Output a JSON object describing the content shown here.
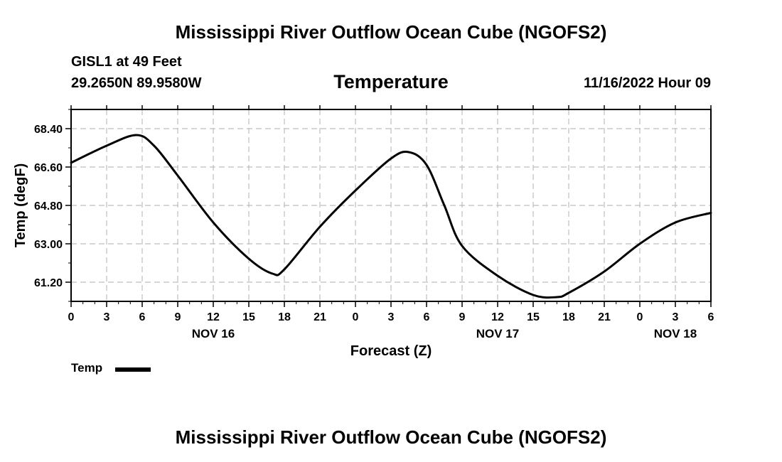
{
  "header": {
    "title": "Mississippi River Outflow Ocean Cube (NGOFS2)",
    "station": "GISL1 at 49 Feet",
    "coordinates": "29.2650N  89.9580W",
    "chart_title": "Temperature",
    "datetime": "11/16/2022 Hour 09"
  },
  "footer": {
    "title": "Mississippi River Outflow Ocean Cube (NGOFS2)"
  },
  "legend": {
    "label": "Temp",
    "color": "#000000"
  },
  "chart_data": {
    "type": "line",
    "title": "Temperature",
    "xlabel": "Forecast (Z)",
    "ylabel": "Temp (degF)",
    "xlim": [
      0,
      54
    ],
    "ylim": [
      60.3,
      69.3
    ],
    "y_ticks": [
      "61.20",
      "63.00",
      "64.80",
      "66.60",
      "68.40"
    ],
    "x_tick_hours": [
      0,
      3,
      6,
      9,
      12,
      15,
      18,
      21,
      24,
      27,
      30,
      33,
      36,
      39,
      42,
      45,
      48,
      51,
      54
    ],
    "x_tick_labels": [
      "0",
      "3",
      "6",
      "9",
      "12",
      "15",
      "18",
      "21",
      "0",
      "3",
      "6",
      "9",
      "12",
      "15",
      "18",
      "21",
      "0",
      "3",
      "6"
    ],
    "day_labels": [
      {
        "hour": 12,
        "label": "NOV 16"
      },
      {
        "hour": 36,
        "label": "NOV 17"
      },
      {
        "hour": 51,
        "label": "NOV 18"
      }
    ],
    "grid": true,
    "series": [
      {
        "name": "Temp",
        "color": "#000000",
        "x": [
          0,
          3,
          5.5,
          7,
          9,
          12,
          15,
          17,
          18,
          21,
          24,
          27,
          28.5,
          30,
          31.5,
          33,
          36,
          39,
          41,
          42,
          45,
          48,
          51,
          54
        ],
        "y": [
          66.8,
          67.6,
          68.1,
          67.6,
          66.2,
          64.0,
          62.3,
          61.6,
          61.8,
          63.8,
          65.5,
          67.0,
          67.3,
          66.7,
          64.8,
          62.9,
          61.5,
          60.6,
          60.5,
          60.7,
          61.7,
          63.0,
          64.0,
          64.45
        ]
      }
    ]
  }
}
